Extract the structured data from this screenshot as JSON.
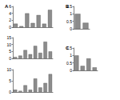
{
  "chart_data": [
    {
      "type": "bar",
      "title": "A",
      "categories": [
        null,
        null,
        null,
        null,
        null,
        null,
        null
      ],
      "values": [
        1,
        0.3,
        4,
        1.2,
        3.5,
        1,
        5
      ],
      "color": "#8c8c8c",
      "ylim": [
        0,
        6
      ],
      "yticks": [
        0,
        2,
        4,
        6
      ],
      "grid": false,
      "tick_labels": "y"
    },
    {
      "type": "bar",
      "categories": [
        null,
        null,
        null,
        null,
        null,
        null,
        null,
        null
      ],
      "values": [
        1,
        2,
        6,
        3,
        9,
        4,
        12,
        5
      ],
      "color": "#8c8c8c",
      "ylim": [
        0,
        15
      ],
      "yticks": [
        0,
        5,
        10,
        15
      ],
      "grid": false,
      "tick_labels": "y"
    },
    {
      "type": "bar",
      "categories": [
        null,
        null,
        null,
        null,
        null,
        null,
        null,
        null
      ],
      "values": [
        1,
        0.5,
        3,
        1,
        6,
        2,
        4,
        8
      ],
      "color": "#8c8c8c",
      "ylim": [
        0,
        10
      ],
      "yticks": [
        0,
        5,
        10
      ],
      "grid": false,
      "tick_labels": "y"
    },
    {
      "type": "bar",
      "title": "B",
      "categories": [
        null,
        null
      ],
      "values": [
        1,
        0.4
      ],
      "color": "#8c8c8c",
      "ylim": [
        0,
        1.5
      ],
      "yticks": [
        0,
        0.5,
        1,
        1.5
      ],
      "grid": false,
      "tick_labels": "y"
    },
    {
      "type": "bar",
      "title": "C",
      "categories": [
        null,
        null,
        null,
        null
      ],
      "values": [
        1,
        0.3,
        0.8,
        0.2
      ],
      "color": "#8c8c8c",
      "ylim": [
        0,
        1.5
      ],
      "yticks": [
        0,
        0.5,
        1,
        1.5
      ],
      "grid": false,
      "tick_labels": "y"
    }
  ]
}
